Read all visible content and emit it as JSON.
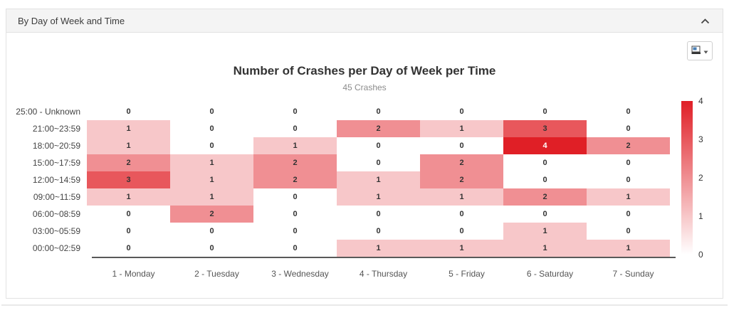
{
  "panel": {
    "title": "By Day of Week and Time",
    "collapse_icon": "chevron-up"
  },
  "toolbar": {
    "export_icon": "save-as-image",
    "caret_icon": "caret-down"
  },
  "chart_data": {
    "type": "heatmap",
    "title": "Number of Crashes per Day of Week per Time",
    "subtitle": "45 Crashes",
    "columns": [
      "1 - Monday",
      "2 - Tuesday",
      "3 - Wednesday",
      "4 - Thursday",
      "5 - Friday",
      "6 - Saturday",
      "7 - Sunday"
    ],
    "rows": [
      "25:00 - Unknown",
      "21:00~23:59",
      "18:00~20:59",
      "15:00~17:59",
      "12:00~14:59",
      "09:00~11:59",
      "06:00~08:59",
      "03:00~05:59",
      "00:00~02:59"
    ],
    "values": [
      [
        0,
        0,
        0,
        0,
        0,
        0,
        0
      ],
      [
        1,
        0,
        0,
        2,
        1,
        3,
        0
      ],
      [
        1,
        0,
        1,
        0,
        0,
        4,
        2
      ],
      [
        2,
        1,
        2,
        0,
        2,
        0,
        0
      ],
      [
        3,
        1,
        2,
        1,
        2,
        0,
        0
      ],
      [
        1,
        1,
        0,
        1,
        1,
        2,
        1
      ],
      [
        0,
        2,
        0,
        0,
        0,
        0,
        0
      ],
      [
        0,
        0,
        0,
        0,
        0,
        1,
        0
      ],
      [
        0,
        0,
        0,
        1,
        1,
        1,
        1
      ]
    ],
    "colorbar": {
      "min": 0,
      "max": 4,
      "ticks": [
        4,
        3,
        2,
        1,
        0
      ],
      "min_color": "#ffffff",
      "max_color": "#e01f26",
      "position": "right"
    },
    "grid": false,
    "cell_text_color": "#333333",
    "cell_text_color_max": "#ffffff"
  }
}
